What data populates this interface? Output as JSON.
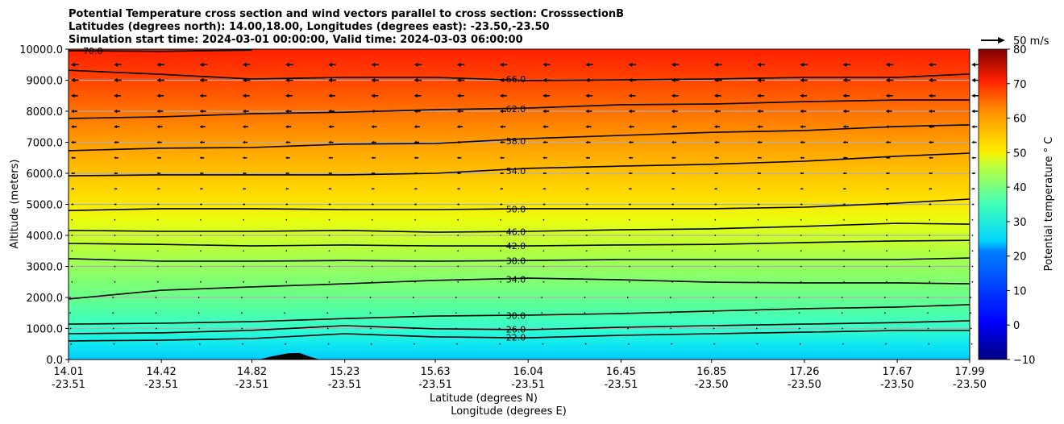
{
  "chart_data": {
    "type": "contour",
    "title_lines": [
      "Potential Temperature cross section and wind vectors parallel to cross section: CrosssectionB",
      "Latitudes (degrees north): 14.00,18.00, Longitudes (degrees east): -23.50,-23.50",
      "Simulation start time: 2024-03-01 00:00:00, Valid time: 2024-03-03 06:00:00"
    ],
    "xlabel": "Latitude (degrees N)",
    "xlabel2": "Longitude (degrees E)",
    "ylabel": "Altitude (meters)",
    "xlim": [
      14.01,
      17.99
    ],
    "ylim": [
      0,
      10000
    ],
    "x_ticks": [
      {
        "lat": "14.01",
        "lon": "-23.51",
        "v": 14.01
      },
      {
        "lat": "14.42",
        "lon": "-23.51",
        "v": 14.42
      },
      {
        "lat": "14.82",
        "lon": "-23.51",
        "v": 14.82
      },
      {
        "lat": "15.23",
        "lon": "-23.51",
        "v": 15.23
      },
      {
        "lat": "15.63",
        "lon": "-23.51",
        "v": 15.63
      },
      {
        "lat": "16.04",
        "lon": "-23.51",
        "v": 16.04
      },
      {
        "lat": "16.45",
        "lon": "-23.51",
        "v": 16.45
      },
      {
        "lat": "16.85",
        "lon": "-23.50",
        "v": 16.85
      },
      {
        "lat": "17.26",
        "lon": "-23.50",
        "v": 17.26
      },
      {
        "lat": "17.67",
        "lon": "-23.50",
        "v": 17.67
      },
      {
        "lat": "17.99",
        "lon": "-23.50",
        "v": 17.99
      }
    ],
    "y_ticks": [
      {
        "label": "0.0",
        "v": 0
      },
      {
        "label": "1000.0",
        "v": 1000
      },
      {
        "label": "2000.0",
        "v": 2000
      },
      {
        "label": "3000.0",
        "v": 3000
      },
      {
        "label": "4000.0",
        "v": 4000
      },
      {
        "label": "5000.0",
        "v": 5000
      },
      {
        "label": "6000.0",
        "v": 6000
      },
      {
        "label": "7000.0",
        "v": 7000
      },
      {
        "label": "8000.0",
        "v": 8000
      },
      {
        "label": "9000.0",
        "v": 9000
      },
      {
        "label": "10000.0",
        "v": 10000
      }
    ],
    "grid": "horizontal",
    "contour_sample_lats": [
      14.01,
      14.42,
      14.82,
      15.23,
      15.63,
      16.04,
      16.45,
      16.85,
      17.26,
      17.67,
      17.99
    ],
    "contours": [
      {
        "level": 22,
        "label": "22.0",
        "alt": [
          600,
          620,
          675,
          830,
          730,
          700,
          780,
          830,
          880,
          935,
          935
        ]
      },
      {
        "level": 26,
        "label": "26.0",
        "alt": [
          830,
          860,
          940,
          1090,
          990,
          960,
          1040,
          1090,
          1140,
          1190,
          1250
        ]
      },
      {
        "level": 30,
        "label": "30.0",
        "alt": [
          1140,
          1170,
          1220,
          1320,
          1400,
          1430,
          1480,
          1560,
          1640,
          1690,
          1770
        ]
      },
      {
        "level": 34,
        "label": "34.0",
        "alt": [
          1950,
          2230,
          2340,
          2440,
          2550,
          2620,
          2570,
          2490,
          2470,
          2470,
          2440
        ]
      },
      {
        "level": 38,
        "label": "38.0",
        "alt": [
          3250,
          3170,
          3170,
          3190,
          3170,
          3190,
          3220,
          3220,
          3220,
          3220,
          3270
        ]
      },
      {
        "level": 42,
        "label": "42.0",
        "alt": [
          3740,
          3710,
          3660,
          3690,
          3660,
          3660,
          3690,
          3710,
          3770,
          3820,
          3840
        ]
      },
      {
        "level": 46,
        "label": "46.0",
        "alt": [
          4160,
          4130,
          4130,
          4160,
          4100,
          4130,
          4180,
          4210,
          4290,
          4390,
          4360
        ]
      },
      {
        "level": 50,
        "label": "50.0",
        "alt": [
          4800,
          4860,
          4860,
          4830,
          4830,
          4860,
          4860,
          4860,
          4910,
          5040,
          5170
        ]
      },
      {
        "level": 54,
        "label": "54.0",
        "alt": [
          5920,
          5950,
          5950,
          5950,
          6000,
          6160,
          6230,
          6290,
          6390,
          6550,
          6650
        ]
      },
      {
        "level": 58,
        "label": "58.0",
        "alt": [
          6730,
          6810,
          6830,
          6940,
          6960,
          7120,
          7220,
          7320,
          7380,
          7510,
          7560
        ]
      },
      {
        "level": 62,
        "label": "62.0",
        "alt": [
          7770,
          7820,
          7920,
          7970,
          8050,
          8100,
          8210,
          8230,
          8310,
          8360,
          8360
        ]
      },
      {
        "level": 66,
        "label": "66.0",
        "alt": [
          9320,
          9190,
          9040,
          9090,
          9090,
          8990,
          9010,
          9040,
          9090,
          9090,
          9200
        ]
      },
      {
        "level": 70,
        "label": "70.0",
        "alt": [
          9950,
          9930,
          9970,
          null,
          null,
          null,
          null,
          null,
          null,
          null,
          null
        ]
      }
    ],
    "wind_rows": [
      {
        "alt": 9500,
        "u": -12
      },
      {
        "alt": 9000,
        "u": -12
      },
      {
        "alt": 8500,
        "u": -11
      },
      {
        "alt": 8000,
        "u": -10
      },
      {
        "alt": 7500,
        "u": -9
      },
      {
        "alt": 7000,
        "u": -8
      },
      {
        "alt": 6500,
        "u": -7
      },
      {
        "alt": 6000,
        "u": -6
      },
      {
        "alt": 5500,
        "u": -5
      },
      {
        "alt": 5000,
        "u": -4
      },
      {
        "alt": 4500,
        "u": -3
      },
      {
        "alt": 4000,
        "u": -2
      },
      {
        "alt": 3500,
        "u": -1.5
      },
      {
        "alt": 3000,
        "u": -1
      },
      {
        "alt": 2500,
        "u": -0.5
      },
      {
        "alt": 2000,
        "u": 0.5
      },
      {
        "alt": 1500,
        "u": 0.5
      },
      {
        "alt": 1000,
        "u": 1
      },
      {
        "alt": 500,
        "u": 2
      }
    ],
    "wind_key": {
      "label": "50 m/s",
      "speed": 50
    },
    "terrain": {
      "lat": [
        14.85,
        14.92,
        14.98,
        15.03,
        15.08,
        15.12
      ],
      "alt": [
        0,
        120,
        200,
        210,
        80,
        0
      ]
    },
    "colorbar": {
      "label": "Potential temperature $^\\circ$C",
      "label_display": "Potential temperature ° C",
      "range": [
        -10,
        80
      ],
      "ticks": [
        "−10",
        "0",
        "10",
        "20",
        "30",
        "40",
        "50",
        "60",
        "70",
        "80"
      ],
      "tick_values": [
        -10,
        0,
        10,
        20,
        30,
        40,
        50,
        60,
        70,
        80
      ],
      "colormap": "jet"
    }
  }
}
